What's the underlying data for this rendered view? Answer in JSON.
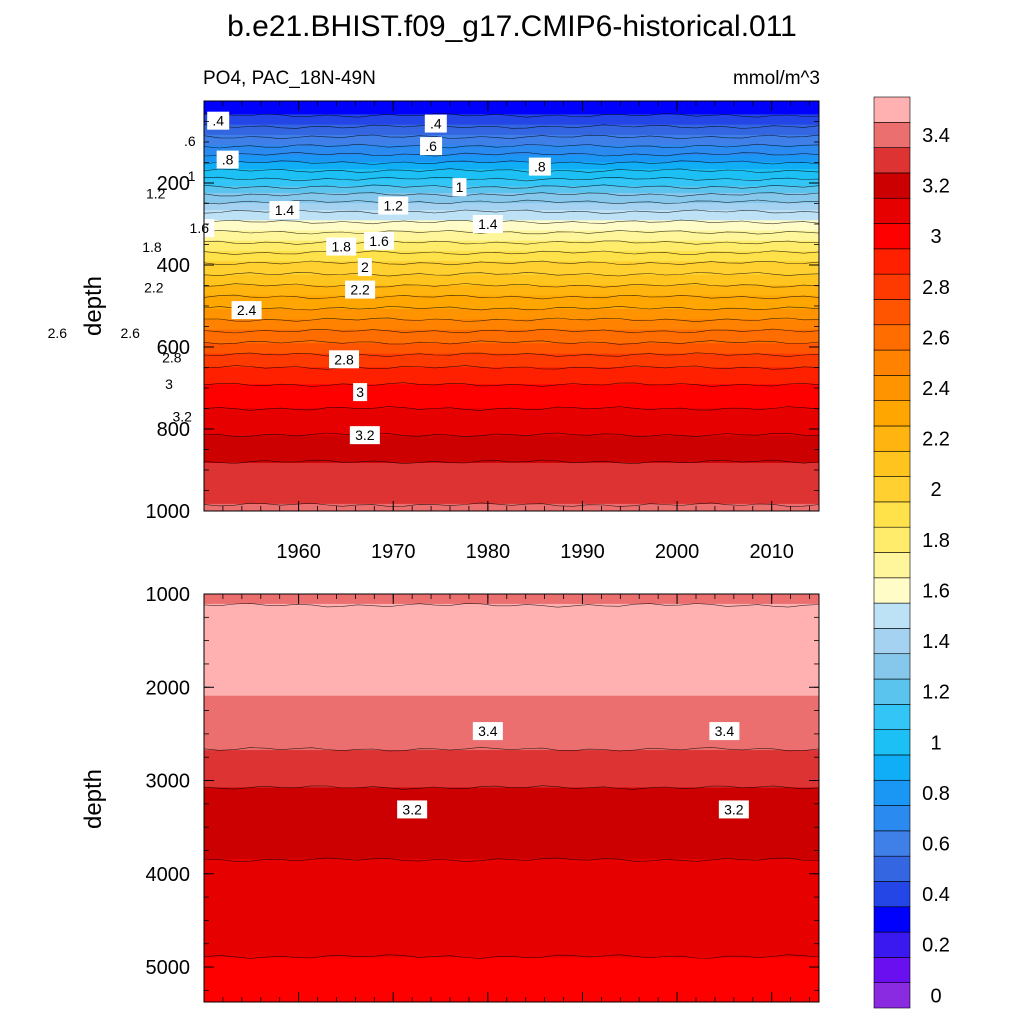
{
  "chart_data": {
    "type": "heatmap",
    "title": "b.e21.BHIST.f09_g17.CMIP6-historical.011",
    "subtitle_left": "PO4, PAC_18N-49N",
    "units": "mmol/m^3",
    "x_range": [
      1950,
      2015
    ],
    "x_ticks": [
      1960,
      1970,
      1980,
      1990,
      2000,
      2010
    ],
    "colorbar": {
      "levels": [
        0,
        0.1,
        0.2,
        0.3,
        0.4,
        0.5,
        0.6,
        0.7,
        0.8,
        0.9,
        1.0,
        1.1,
        1.2,
        1.3,
        1.4,
        1.5,
        1.6,
        1.7,
        1.8,
        1.9,
        2.0,
        2.1,
        2.2,
        2.3,
        2.4,
        2.5,
        2.6,
        2.7,
        2.8,
        2.9,
        3.0,
        3.1,
        3.2,
        3.3,
        3.4,
        3.5
      ],
      "labels": [
        "0",
        "0.2",
        "0.4",
        "0.6",
        "0.8",
        "1",
        "1.2",
        "1.4",
        "1.6",
        "1.8",
        "2",
        "2.2",
        "2.4",
        "2.6",
        "2.8",
        "3",
        "3.2",
        "3.4"
      ],
      "colors": [
        "#8a2be2",
        "#6a10f0",
        "#3a18f0",
        "#0000ff",
        "#2446e6",
        "#3366e0",
        "#3f7fe8",
        "#2a8af0",
        "#1a97f5",
        "#10aef7",
        "#1cc0f5",
        "#33c5f6",
        "#5ac4ee",
        "#86c8ec",
        "#a4d2f0",
        "#bde1f5",
        "#fffcc8",
        "#fff59b",
        "#ffec6a",
        "#ffe24a",
        "#ffd030",
        "#ffc41e",
        "#ffb40f",
        "#ffa600",
        "#ff9400",
        "#ff8200",
        "#ff6c00",
        "#ff5500",
        "#ff3a00",
        "#ff2000",
        "#ff0000",
        "#e60000",
        "#cc0000",
        "#dd3333",
        "#ec6f6f",
        "#ffb1b1"
      ]
    },
    "panels": [
      {
        "name": "upper",
        "ylabel": "depth",
        "y_range": [
          0,
          1000
        ],
        "y_ticks": [
          200,
          400,
          600,
          800,
          1000
        ],
        "profile": {
          "depth": [
            0,
            20,
            50,
            100,
            150,
            200,
            250,
            300,
            350,
            400,
            450,
            500,
            550,
            600,
            650,
            700,
            750,
            800,
            850,
            880,
            900,
            950,
            985,
            1000
          ],
          "po4": [
            0.3,
            0.35,
            0.45,
            0.65,
            0.9,
            1.15,
            1.42,
            1.62,
            1.82,
            2.02,
            2.2,
            2.38,
            2.56,
            2.74,
            2.9,
            3.02,
            3.1,
            3.18,
            3.25,
            3.3,
            3.32,
            3.37,
            3.4,
            3.42
          ]
        },
        "contour_labels": [
          {
            "text": ".4",
            "x": 1951.5,
            "depth": 48
          },
          {
            "text": ".6",
            "x": 1948.5,
            "depth": 98
          },
          {
            "text": ".8",
            "x": 1952.5,
            "depth": 143
          },
          {
            "text": "1",
            "x": 1948.7,
            "depth": 183
          },
          {
            "text": "1.2",
            "x": 1944.9,
            "depth": 226
          },
          {
            "text": "1.4",
            "x": 1958.5,
            "depth": 266
          },
          {
            "text": "1.6",
            "x": 1949.5,
            "depth": 310
          },
          {
            "text": "1.8",
            "x": 1944.5,
            "depth": 356
          },
          {
            "text": "2",
            "x": 1967,
            "depth": 405
          },
          {
            "text": "2.2",
            "x": 1944.7,
            "depth": 455
          },
          {
            "text": "2.4",
            "x": 1954.5,
            "depth": 510
          },
          {
            "text": "2.6",
            "x": 1942.2,
            "depth": 566
          },
          {
            "text": "2.8",
            "x": 1946.6,
            "depth": 625
          },
          {
            "text": "3",
            "x": 1946.3,
            "depth": 690
          },
          {
            "text": "3.2",
            "x": 1947.7,
            "depth": 770
          },
          {
            "text": ".4",
            "x": 1974.5,
            "depth": 55
          },
          {
            "text": ".6",
            "x": 1974,
            "depth": 110
          },
          {
            "text": ".8",
            "x": 1985.5,
            "depth": 160
          },
          {
            "text": "1",
            "x": 1977,
            "depth": 210
          },
          {
            "text": "1.2",
            "x": 1970,
            "depth": 255
          },
          {
            "text": "1.4",
            "x": 1980,
            "depth": 300
          },
          {
            "text": "1.6",
            "x": 1968.5,
            "depth": 341
          },
          {
            "text": "1.8",
            "x": 1964.5,
            "depth": 355
          },
          {
            "text": "2.2",
            "x": 1966.5,
            "depth": 460
          },
          {
            "text": "2.6",
            "x": 1934.5,
            "depth": 566
          },
          {
            "text": "2.8",
            "x": 1964.8,
            "depth": 630
          },
          {
            "text": "3",
            "x": 1966.5,
            "depth": 710
          },
          {
            "text": "3.2",
            "x": 1967,
            "depth": 815
          }
        ]
      },
      {
        "name": "lower",
        "ylabel": "depth",
        "y_range": [
          1000,
          5375
        ],
        "y_ticks": [
          1000,
          2000,
          3000,
          4000,
          5000
        ],
        "profile": {
          "depth": [
            1000,
            1120,
            2100,
            2480,
            2850,
            3300,
            4400,
            5375
          ],
          "po4": [
            3.45,
            3.5,
            3.5,
            3.45,
            3.35,
            3.25,
            3.15,
            3.05
          ]
        },
        "contour_labels": [
          {
            "text": "3.4",
            "x": 1980,
            "depth": 2470
          },
          {
            "text": "3.4",
            "x": 2005,
            "depth": 2470
          },
          {
            "text": "3.2",
            "x": 1972,
            "depth": 3310
          },
          {
            "text": "3.2",
            "x": 2006,
            "depth": 3310
          }
        ]
      }
    ]
  }
}
